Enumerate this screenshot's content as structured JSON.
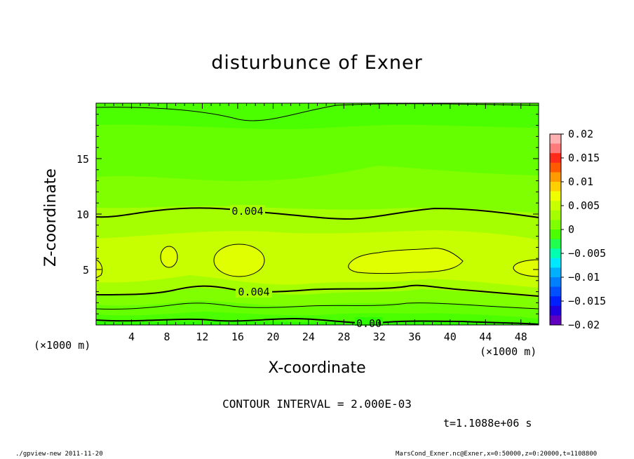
{
  "chart_data": {
    "type": "contour",
    "title": "disturbunce of Exner",
    "xlabel": "X-coordinate",
    "ylabel": "Z-coordinate",
    "x_unit": "(×1000 m)",
    "y_unit": "(×1000 m)",
    "xlim": [
      0,
      50
    ],
    "ylim": [
      0,
      20
    ],
    "x_ticks": [
      "4",
      "8",
      "12",
      "16",
      "20",
      "24",
      "28",
      "32",
      "36",
      "40",
      "44",
      "48"
    ],
    "y_ticks": [
      "5",
      "10",
      "15"
    ],
    "colorbar_ticks": [
      "0.02",
      "0.015",
      "0.01",
      "0.005",
      "0",
      "−0.005",
      "−0.01",
      "−0.015",
      "−0.02"
    ],
    "colorbar_range": [
      -0.02,
      0.02
    ],
    "contour_labels": [
      "0.004",
      "0.004",
      "0.00"
    ],
    "contour_interval_text": "CONTOUR INTERVAL = 2.000E-03",
    "time_text": "t=1.1088e+06 s"
  },
  "footer": {
    "left": "./gpview-new   2011-11-20",
    "right": "MarsCond_Exner.nc@Exner,x=0:50000,z=0:20000,t=1108800"
  }
}
